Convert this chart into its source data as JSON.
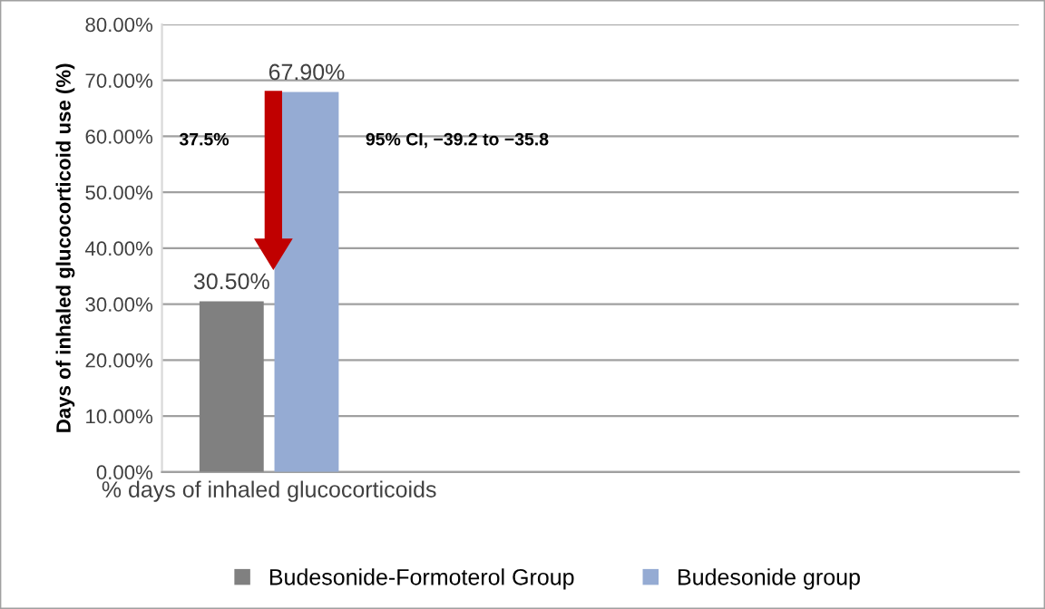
{
  "chart_data": {
    "type": "bar",
    "ylabel": "Days of inhaled glucocorticoid use (%)",
    "categories": [
      "% days of inhaled glucocorticoids",
      null,
      null,
      null
    ],
    "series": [
      {
        "name": "Budesonide-Formoterol Group",
        "color": "#808080",
        "values": [
          30.5,
          null,
          null,
          null
        ],
        "value_labels": [
          "30.50%",
          null,
          null,
          null
        ]
      },
      {
        "name": "Budesonide group",
        "color": "#95abd3",
        "values": [
          67.9,
          null,
          null,
          null
        ],
        "value_labels": [
          "67.90%",
          null,
          null,
          null
        ]
      }
    ],
    "ylim": [
      0,
      80
    ],
    "yticks": [
      {
        "value": 0,
        "label": "0.00%"
      },
      {
        "value": 10,
        "label": "10.00%"
      },
      {
        "value": 20,
        "label": "20.00%"
      },
      {
        "value": 30,
        "label": "30.00%"
      },
      {
        "value": 40,
        "label": "40.00%"
      },
      {
        "value": 50,
        "label": "50.00%"
      },
      {
        "value": 60,
        "label": "60.00%"
      },
      {
        "value": 70,
        "label": "70.00%"
      },
      {
        "value": 80,
        "label": "80.00%"
      }
    ],
    "annotations": [
      "37.5%",
      "95% CI, −39.2 to −35.8"
    ],
    "grid": "y",
    "legend": "bottom"
  }
}
